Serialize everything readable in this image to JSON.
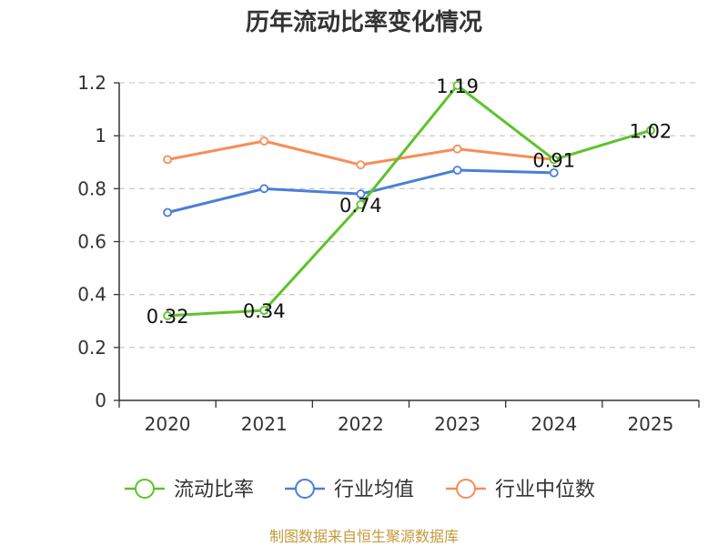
{
  "chart_data": {
    "type": "line",
    "title": "历年流动比率变化情况",
    "categories": [
      "2020",
      "2021",
      "2022",
      "2023",
      "2024",
      "2025"
    ],
    "ylim": [
      0,
      1.2
    ],
    "yticks": [
      "0",
      "0.2",
      "0.4",
      "0.6",
      "0.8",
      "1",
      "1.2"
    ],
    "grid": true,
    "legend_position": "bottom",
    "series": [
      {
        "name": "流动比率",
        "color": "#5fc22a",
        "values": [
          0.32,
          0.34,
          0.74,
          1.19,
          0.91,
          1.02
        ],
        "labels": [
          "0.32",
          "0.34",
          "0.74",
          "1.19",
          "0.91",
          "1.02"
        ]
      },
      {
        "name": "行业均值",
        "color": "#4b7fd6",
        "values": [
          0.71,
          0.8,
          0.78,
          0.87,
          0.86,
          null
        ]
      },
      {
        "name": "行业中位数",
        "color": "#f78d57",
        "values": [
          0.91,
          0.98,
          0.89,
          0.95,
          0.91,
          null
        ]
      }
    ],
    "source": "制图数据来自恒生聚源数据库"
  }
}
